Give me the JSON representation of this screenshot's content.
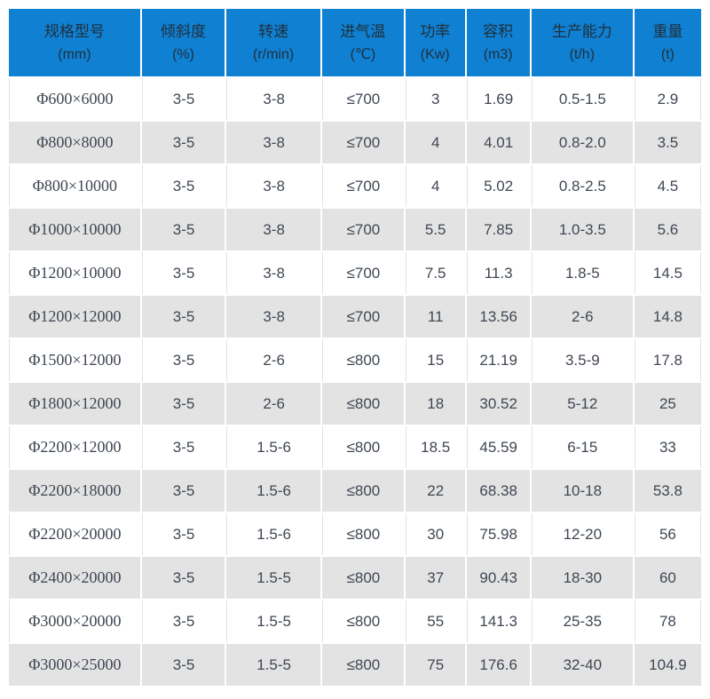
{
  "chart_data": {
    "type": "table",
    "columns": [
      {
        "label": "规格型号",
        "unit": "(mm)"
      },
      {
        "label": "倾斜度",
        "unit": "(%)"
      },
      {
        "label": "转速",
        "unit": "(r/min)"
      },
      {
        "label": "进气温",
        "unit": "(℃)"
      },
      {
        "label": "功率",
        "unit": "(Kw)"
      },
      {
        "label": "容积",
        "unit": "(m3)"
      },
      {
        "label": "生产能力",
        "unit": "(t/h)"
      },
      {
        "label": "重量",
        "unit": "(t)"
      }
    ],
    "rows": [
      [
        "Φ600×6000",
        "3-5",
        "3-8",
        "≤700",
        "3",
        "1.69",
        "0.5-1.5",
        "2.9"
      ],
      [
        "Φ800×8000",
        "3-5",
        "3-8",
        "≤700",
        "4",
        "4.01",
        "0.8-2.0",
        "3.5"
      ],
      [
        "Φ800×10000",
        "3-5",
        "3-8",
        "≤700",
        "4",
        "5.02",
        "0.8-2.5",
        "4.5"
      ],
      [
        "Φ1000×10000",
        "3-5",
        "3-8",
        "≤700",
        "5.5",
        "7.85",
        "1.0-3.5",
        "5.6"
      ],
      [
        "Φ1200×10000",
        "3-5",
        "3-8",
        "≤700",
        "7.5",
        "11.3",
        "1.8-5",
        "14.5"
      ],
      [
        "Φ1200×12000",
        "3-5",
        "3-8",
        "≤700",
        "11",
        "13.56",
        "2-6",
        "14.8"
      ],
      [
        "Φ1500×12000",
        "3-5",
        "2-6",
        "≤800",
        "15",
        "21.19",
        "3.5-9",
        "17.8"
      ],
      [
        "Φ1800×12000",
        "3-5",
        "2-6",
        "≤800",
        "18",
        "30.52",
        "5-12",
        "25"
      ],
      [
        "Φ2200×12000",
        "3-5",
        "1.5-6",
        "≤800",
        "18.5",
        "45.59",
        "6-15",
        "33"
      ],
      [
        "Φ2200×18000",
        "3-5",
        "1.5-6",
        "≤800",
        "22",
        "68.38",
        "10-18",
        "53.8"
      ],
      [
        "Φ2200×20000",
        "3-5",
        "1.5-6",
        "≤800",
        "30",
        "75.98",
        "12-20",
        "56"
      ],
      [
        "Φ2400×20000",
        "3-5",
        "1.5-5",
        "≤800",
        "37",
        "90.43",
        "18-30",
        "60"
      ],
      [
        "Φ3000×20000",
        "3-5",
        "1.5-5",
        "≤800",
        "55",
        "141.3",
        "25-35",
        "78"
      ],
      [
        "Φ3000×25000",
        "3-5",
        "1.5-5",
        "≤800",
        "75",
        "176.6",
        "32-40",
        "104.9"
      ]
    ]
  },
  "colors": {
    "header_bg": "#0f80d2",
    "header_text": "#20303d",
    "body_text": "#3f4752",
    "row_alt_bg": "#e3e3e3",
    "border": "#e2e2e2"
  }
}
